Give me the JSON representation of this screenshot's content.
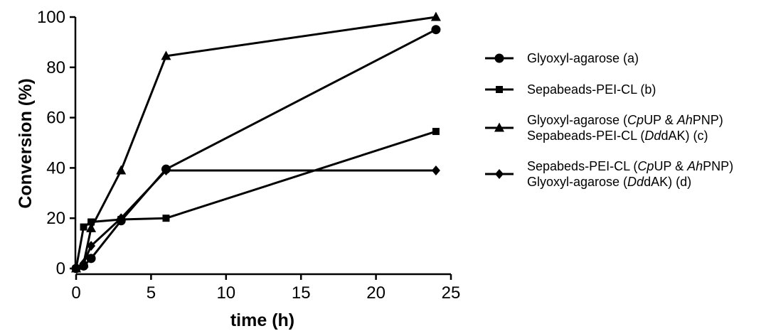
{
  "chart_data": {
    "type": "line",
    "xlabel": "time (h)",
    "ylabel": "Conversion (%)",
    "xlim": [
      0,
      25
    ],
    "ylim": [
      0,
      100
    ],
    "xticks": [
      0,
      5,
      10,
      15,
      20,
      25
    ],
    "yticks": [
      0,
      20,
      40,
      60,
      80,
      100
    ],
    "grid": false,
    "legend_position": "right",
    "series": [
      {
        "name": "Glyoxyl-agarose (a)",
        "name_parts": [
          [
            {
              "t": "Glyoxyl-agarose (a)",
              "i": false
            }
          ]
        ],
        "marker": "circle",
        "x": [
          0,
          0.5,
          1,
          3,
          6,
          24
        ],
        "y": [
          0,
          1,
          4,
          19,
          39.5,
          95
        ]
      },
      {
        "name": "Sepabeads-PEI-CL (b)",
        "name_parts": [
          [
            {
              "t": "Sepabeads-PEI-CL (b)",
              "i": false
            }
          ]
        ],
        "marker": "square",
        "x": [
          0,
          0.5,
          1,
          3,
          6,
          24
        ],
        "y": [
          0,
          16.5,
          18.5,
          19.5,
          20,
          54.5
        ]
      },
      {
        "name": "Glyoxyl-agarose (CpUP & AhPNP) Sepabeads-PEI-CL (DddAK) (c)",
        "name_parts": [
          [
            {
              "t": "Glyoxyl-agarose (",
              "i": false
            },
            {
              "t": "Cp",
              "i": true
            },
            {
              "t": "UP & ",
              "i": false
            },
            {
              "t": "Ah",
              "i": true
            },
            {
              "t": "PNP)",
              "i": false
            }
          ],
          [
            {
              "t": "Sepabeads-PEI-CL (",
              "i": false
            },
            {
              "t": "Dd",
              "i": true
            },
            {
              "t": "dAK) (c)",
              "i": false
            }
          ]
        ],
        "marker": "triangle",
        "x": [
          0,
          0.5,
          1,
          3,
          6,
          24
        ],
        "y": [
          0,
          2,
          16,
          39,
          84.5,
          100
        ]
      },
      {
        "name": "Sepabeds-PEI-CL (CpUP & AhPNP) Glyoxyl-agarose (DddAK) (d)",
        "name_parts": [
          [
            {
              "t": "Sepabeds-PEI-CL (",
              "i": false
            },
            {
              "t": "Cp",
              "i": true
            },
            {
              "t": "UP & ",
              "i": false
            },
            {
              "t": "Ah",
              "i": true
            },
            {
              "t": "PNP)",
              "i": false
            }
          ],
          [
            {
              "t": "Glyoxyl-agarose (",
              "i": false
            },
            {
              "t": "Dd",
              "i": true
            },
            {
              "t": "dAK) (d)",
              "i": false
            }
          ]
        ],
        "marker": "diamond",
        "x": [
          0,
          0.5,
          1,
          3,
          6,
          24
        ],
        "y": [
          0,
          2,
          9,
          20,
          39,
          39
        ]
      }
    ]
  }
}
